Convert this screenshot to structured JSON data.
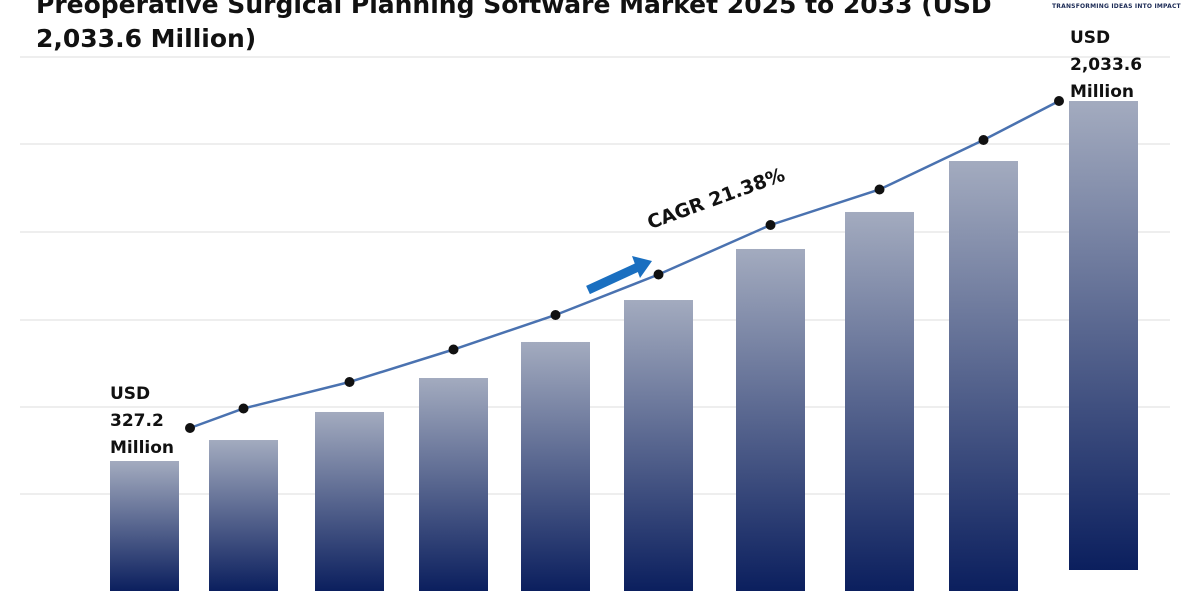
{
  "chart_data": {
    "type": "bar",
    "title": "Preoperative Surgical Planning Software Market 2025 to 2033 (USD 2,033.6 Million)",
    "categories": [
      null,
      null,
      null,
      null,
      null,
      null,
      null,
      null,
      null,
      null
    ],
    "values": [
      327.2,
      426.7,
      559.5,
      720.6,
      891.3,
      1090.3,
      1332.1,
      1507.5,
      1749.2,
      2033.6
    ],
    "value_labels": [
      "USD 327.2 Million",
      null,
      null,
      null,
      null,
      null,
      null,
      null,
      null,
      "USD 2,033.6 Million"
    ],
    "color": "#0b1f5e",
    "line_color": "#4a72b0",
    "annotation": "CAGR 21.38%",
    "grid": true
  },
  "logo": {
    "tagline": "TRANSFORMING IDEAS INTO IMPACT"
  }
}
